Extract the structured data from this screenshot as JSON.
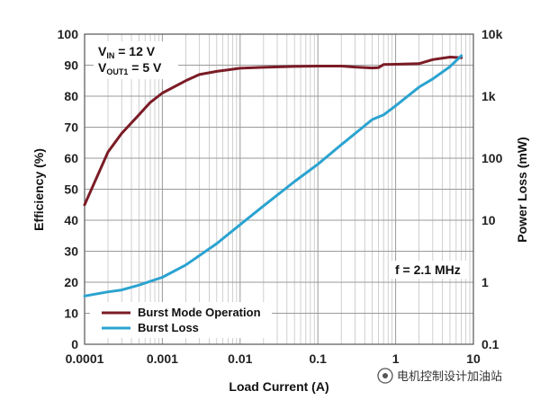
{
  "chart_data": {
    "type": "line",
    "xlabel": "Load Current (A)",
    "ylabel_left": "Efficiency (%)",
    "ylabel_right": "Power Loss (mW)",
    "x_scale": "log",
    "xlim": [
      0.0001,
      10
    ],
    "x_ticks": [
      "0.0001",
      "0.001",
      "0.01",
      "0.1",
      "1",
      "10"
    ],
    "ylim_left": [
      0,
      100
    ],
    "y_left_ticks": [
      "0",
      "10",
      "20",
      "30",
      "40",
      "50",
      "60",
      "70",
      "80",
      "90",
      "100"
    ],
    "y_right_scale": "log",
    "ylim_right": [
      0.1,
      10000
    ],
    "y_right_ticks": [
      "0.1",
      "1",
      "10",
      "100",
      "1k",
      "10k"
    ],
    "grid": true,
    "legend_position": "bottom-left",
    "annotations": {
      "vin_main": "V",
      "vin_sub": "IN",
      "vin_rest": " = 12 V",
      "vout_main": "V",
      "vout_sub": "OUT1",
      "vout_rest": " = 5 V",
      "freq": "f = 2.1 MHz"
    },
    "series": [
      {
        "name": "Burst Mode Operation",
        "axis": "left",
        "color": "#7b1c26",
        "x": [
          0.0001,
          0.0002,
          0.0003,
          0.0005,
          0.0007,
          0.001,
          0.002,
          0.003,
          0.005,
          0.01,
          0.02,
          0.05,
          0.1,
          0.2,
          0.3,
          0.5,
          0.6,
          0.7,
          1,
          2,
          3,
          5,
          7
        ],
        "values": [
          45,
          62,
          68,
          74,
          78,
          81,
          85,
          87,
          88,
          89,
          89.3,
          89.6,
          89.7,
          89.7,
          89.4,
          89.1,
          89.2,
          90.2,
          90.3,
          90.5,
          91.8,
          92.6,
          92.4
        ]
      },
      {
        "name": "Burst Loss",
        "axis": "right",
        "color": "#2ba3d0",
        "x": [
          0.0001,
          0.0002,
          0.0003,
          0.0005,
          0.001,
          0.002,
          0.005,
          0.01,
          0.02,
          0.05,
          0.1,
          0.2,
          0.5,
          0.7,
          1,
          2,
          3,
          5,
          7
        ],
        "values": [
          0.6,
          0.7,
          0.75,
          0.9,
          1.2,
          1.9,
          4.2,
          8.5,
          17,
          42,
          80,
          165,
          420,
          500,
          700,
          1400,
          1900,
          3000,
          4500
        ]
      }
    ]
  },
  "watermark": {
    "text": "电机控制设计加油站"
  }
}
